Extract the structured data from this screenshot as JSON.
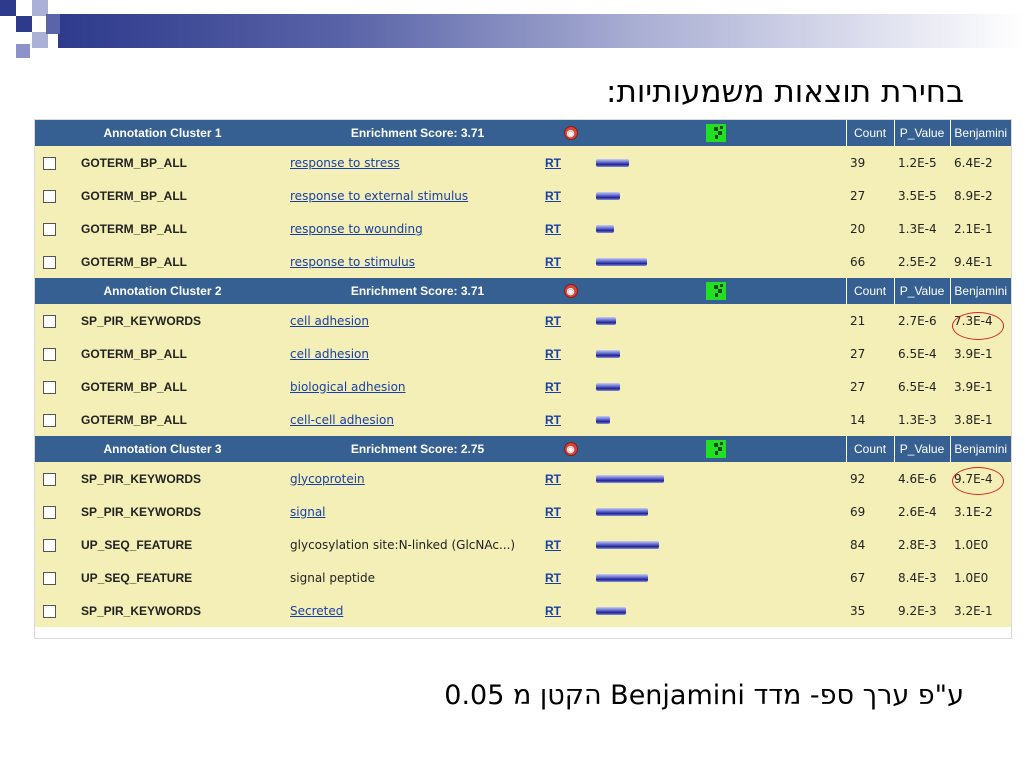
{
  "slide": {
    "title": "בחירת תוצאות משמעותיות:",
    "footer": "ע\"פ ערך ספ- מדד Benjamini הקטן מ 0.05"
  },
  "table": {
    "clusters": [
      {
        "header": {
          "label": "Annotation Cluster 1",
          "score": "Enrichment Score: 3.71",
          "count": "Count",
          "pvalue": "P_Value",
          "benjamini": "Benjamini"
        },
        "rows": [
          {
            "category": "GOTERM_BP_ALL",
            "term": "response to stress",
            "link": true,
            "rt": "RT",
            "bar": 0.48,
            "count": "39",
            "pvalue": "1.2E-5",
            "benjamini": "6.4E-2"
          },
          {
            "category": "GOTERM_BP_ALL",
            "term": "response to external stimulus",
            "link": true,
            "rt": "RT",
            "bar": 0.35,
            "count": "27",
            "pvalue": "3.5E-5",
            "benjamini": "8.9E-2"
          },
          {
            "category": "GOTERM_BP_ALL",
            "term": "response to wounding",
            "link": true,
            "rt": "RT",
            "bar": 0.26,
            "count": "20",
            "pvalue": "1.3E-4",
            "benjamini": "2.1E-1"
          },
          {
            "category": "GOTERM_BP_ALL",
            "term": "response to stimulus",
            "link": true,
            "rt": "RT",
            "bar": 0.75,
            "count": "66",
            "pvalue": "2.5E-2",
            "benjamini": "9.4E-1"
          }
        ]
      },
      {
        "header": {
          "label": "Annotation Cluster 2",
          "score": "Enrichment Score: 3.71",
          "count": "Count",
          "pvalue": "P_Value",
          "benjamini": "Benjamini"
        },
        "rows": [
          {
            "category": "SP_PIR_KEYWORDS",
            "term": "cell adhesion",
            "link": true,
            "rt": "RT",
            "bar": 0.29,
            "count": "21",
            "pvalue": "2.7E-6",
            "benjamini": "7.3E-4"
          },
          {
            "category": "GOTERM_BP_ALL",
            "term": "cell adhesion",
            "link": true,
            "rt": "RT",
            "bar": 0.36,
            "count": "27",
            "pvalue": "6.5E-4",
            "benjamini": "3.9E-1"
          },
          {
            "category": "GOTERM_BP_ALL",
            "term": "biological adhesion",
            "link": true,
            "rt": "RT",
            "bar": 0.36,
            "count": "27",
            "pvalue": "6.5E-4",
            "benjamini": "3.9E-1"
          },
          {
            "category": "GOTERM_BP_ALL",
            "term": "cell-cell adhesion",
            "link": true,
            "rt": "RT",
            "bar": 0.2,
            "count": "14",
            "pvalue": "1.3E-3",
            "benjamini": "3.8E-1"
          }
        ]
      },
      {
        "header": {
          "label": "Annotation Cluster 3",
          "score": "Enrichment Score: 2.75",
          "count": "Count",
          "pvalue": "P_Value",
          "benjamini": "Benjamini"
        },
        "rows": [
          {
            "category": "SP_PIR_KEYWORDS",
            "term": "glycoprotein",
            "link": true,
            "rt": "RT",
            "bar": 1.0,
            "count": "92",
            "pvalue": "4.6E-6",
            "benjamini": "9.7E-4"
          },
          {
            "category": "SP_PIR_KEYWORDS",
            "term": "signal",
            "link": true,
            "rt": "RT",
            "bar": 0.77,
            "count": "69",
            "pvalue": "2.6E-4",
            "benjamini": "3.1E-2"
          },
          {
            "category": "UP_SEQ_FEATURE",
            "term": "glycosylation site:N-linked (GlcNAc...)",
            "link": false,
            "rt": "RT",
            "bar": 0.93,
            "count": "84",
            "pvalue": "2.8E-3",
            "benjamini": "1.0E0"
          },
          {
            "category": "UP_SEQ_FEATURE",
            "term": "signal peptide",
            "link": false,
            "rt": "RT",
            "bar": 0.76,
            "count": "67",
            "pvalue": "8.4E-3",
            "benjamini": "1.0E0"
          },
          {
            "category": "SP_PIR_KEYWORDS",
            "term": "Secreted",
            "link": true,
            "rt": "RT",
            "bar": 0.44,
            "count": "35",
            "pvalue": "9.2E-3",
            "benjamini": "3.2E-1"
          }
        ]
      }
    ]
  },
  "icons": {
    "cluster_heatmap": "green-heatmap-icon",
    "cluster_view": "red-2d-view-icon"
  },
  "colors": {
    "header_bg": "#366092",
    "row_bg": "#f3efb6",
    "link": "#1a3fa6",
    "highlight": "#d6281e"
  },
  "highlighted_values": [
    "7.3E-4",
    "9.7E-4"
  ]
}
